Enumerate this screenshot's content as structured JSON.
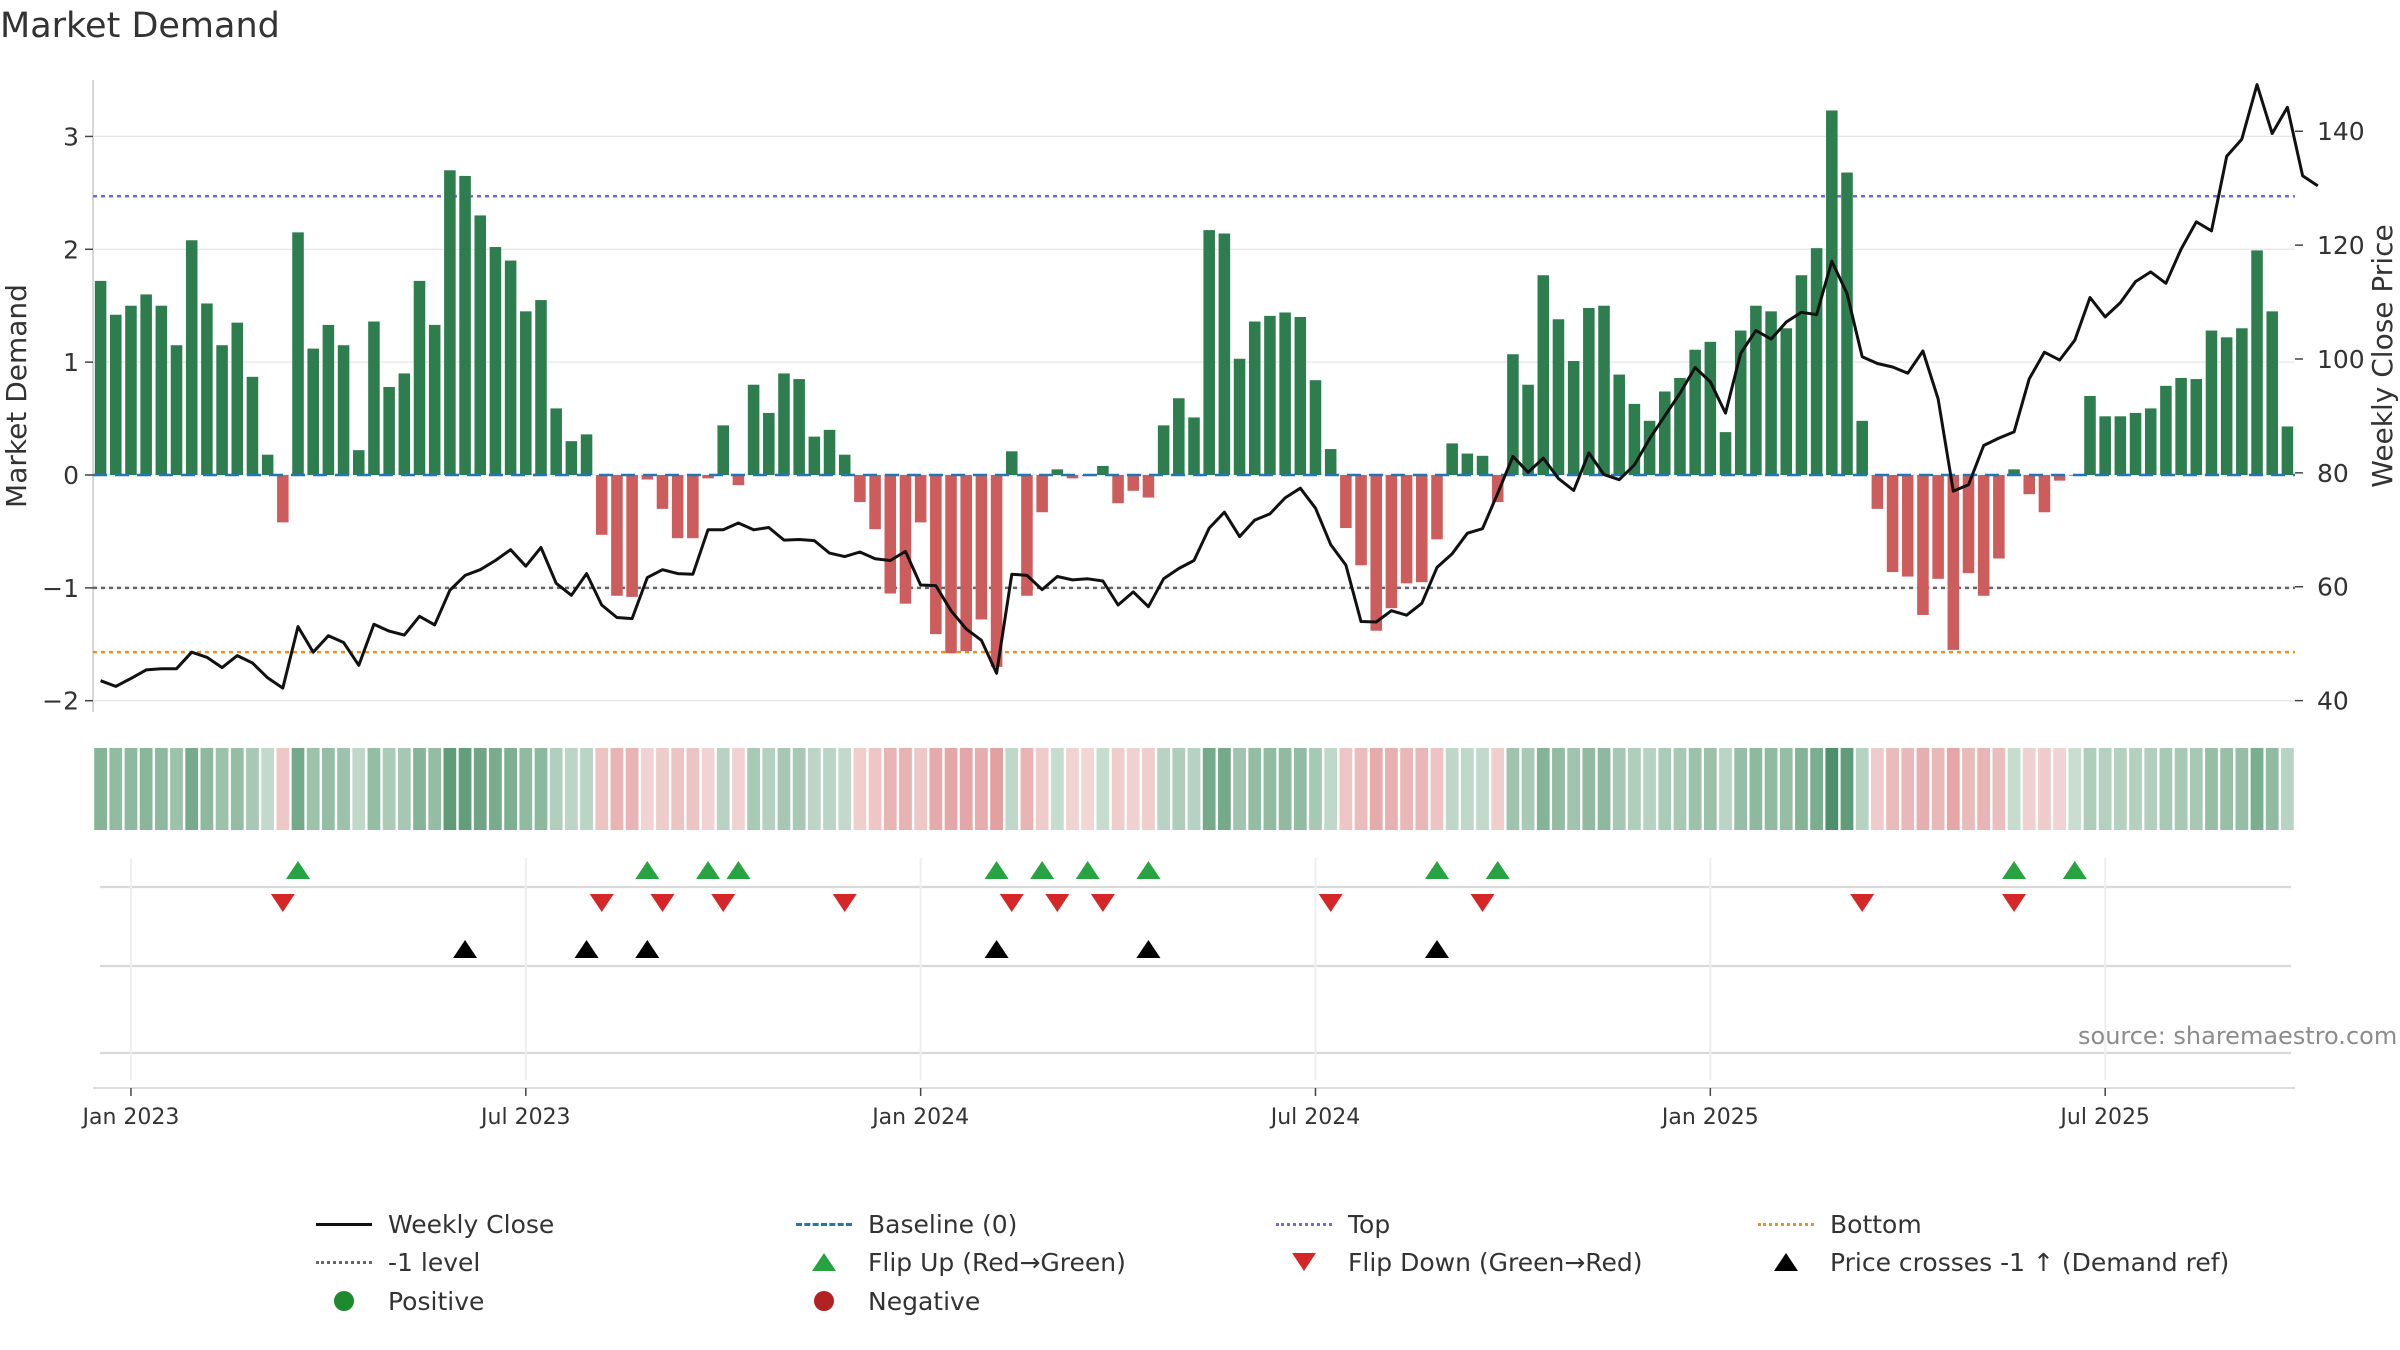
{
  "title": "Market Demand",
  "source_text": "source: sharemaestro.com",
  "colors": {
    "positive": "#2e7d4f",
    "negative": "#cd5c5c",
    "close": "#111111",
    "baseline": "#1f77b4",
    "top": "#6c6cd4",
    "bottom": "#d99a1c",
    "minus1": "#666666",
    "flip_up": "#27a342",
    "flip_down": "#d62728",
    "cross": "#000000",
    "positive_dot": "#1e8a2e",
    "negative_dot": "#b22222",
    "grid": "#e6e6e6",
    "source": "#8c8c8c"
  },
  "chart_data": {
    "type": "bar",
    "title": "Market Demand",
    "ylabel": "Market Demand",
    "y2label": "Weekly Close Price",
    "ylim": [
      -2.1,
      3.5
    ],
    "y2lim": [
      38,
      149
    ],
    "yticks": [
      {
        "v": 3,
        "label": "3"
      },
      {
        "v": 2,
        "label": "2"
      },
      {
        "v": 1,
        "label": "1"
      },
      {
        "v": 0,
        "label": "0"
      },
      {
        "v": -1,
        "label": "−1"
      },
      {
        "v": -2,
        "label": "−2"
      }
    ],
    "y2ticks": [
      {
        "v": 140,
        "label": "140"
      },
      {
        "v": 120,
        "label": "120"
      },
      {
        "v": 100,
        "label": "100"
      },
      {
        "v": 80,
        "label": "80"
      },
      {
        "v": 60,
        "label": "60"
      },
      {
        "v": 40,
        "label": "40"
      }
    ],
    "xticks": [
      {
        "i": 2,
        "label": "Jan 2023"
      },
      {
        "i": 28,
        "label": "Jul 2023"
      },
      {
        "i": 54,
        "label": "Jan 2024"
      },
      {
        "i": 80,
        "label": "Jul 2024"
      },
      {
        "i": 106,
        "label": "Jan 2025"
      },
      {
        "i": 132,
        "label": "Jul 2025"
      }
    ],
    "levels": {
      "baseline": 0,
      "top": 2.47,
      "minus1": -1,
      "bottom": -1.57
    },
    "demand": [
      1.72,
      1.42,
      1.5,
      1.6,
      1.5,
      1.15,
      2.08,
      1.52,
      1.15,
      1.35,
      0.87,
      0.18,
      -0.42,
      2.15,
      1.12,
      1.33,
      1.15,
      0.22,
      1.36,
      0.78,
      0.9,
      1.72,
      1.33,
      2.7,
      2.65,
      2.3,
      2.02,
      1.9,
      1.45,
      1.55,
      0.59,
      0.3,
      0.36,
      -0.53,
      -1.07,
      -1.08,
      -0.04,
      -0.3,
      -0.56,
      -0.56,
      -0.03,
      0.44,
      -0.09,
      0.8,
      0.55,
      0.9,
      0.85,
      0.34,
      0.4,
      0.18,
      -0.24,
      -0.48,
      -1.05,
      -1.14,
      -0.42,
      -1.41,
      -1.58,
      -1.56,
      -1.28,
      -1.7,
      0.21,
      -1.07,
      -0.33,
      0.05,
      -0.03,
      -0.01,
      0.08,
      -0.25,
      -0.14,
      -0.2,
      0.44,
      0.68,
      0.51,
      2.17,
      2.14,
      1.03,
      1.36,
      1.41,
      1.44,
      1.4,
      0.84,
      0.23,
      -0.47,
      -0.8,
      -1.38,
      -1.18,
      -0.96,
      -0.95,
      -0.57,
      0.28,
      0.19,
      0.17,
      -0.24,
      1.07,
      0.8,
      1.77,
      1.38,
      1.01,
      1.48,
      1.5,
      0.89,
      0.63,
      0.48,
      0.74,
      0.86,
      1.11,
      1.18,
      0.38,
      1.28,
      1.5,
      1.45,
      1.3,
      1.77,
      2.01,
      3.23,
      2.68,
      0.48,
      -0.3,
      -0.86,
      -0.9,
      -1.24,
      -0.92,
      -1.55,
      -0.87,
      -1.07,
      -0.74,
      0.05,
      -0.17,
      -0.33,
      -0.05,
      0,
      0.7,
      0.52,
      0.52,
      0.55,
      0.59,
      0.79,
      0.86,
      0.85,
      1.28,
      1.22,
      1.3,
      1.99,
      1.45,
      0.43
    ],
    "close": [
      43.5,
      42.5,
      43.9,
      45.4,
      45.6,
      45.6,
      48.5,
      47.6,
      45.8,
      47.9,
      46.6,
      44.0,
      42.2,
      53.0,
      48.5,
      51.4,
      50.2,
      46.2,
      53.4,
      52.2,
      51.5,
      54.8,
      53.3,
      59.4,
      62.0,
      63.0,
      64.6,
      66.5,
      63.6,
      66.9,
      60.6,
      58.5,
      62.3,
      56.8,
      54.6,
      54.4,
      61.6,
      63.0,
      62.3,
      62.2,
      70.0,
      70.0,
      71.2,
      70.0,
      70.4,
      68.2,
      68.3,
      68.1,
      65.9,
      65.3,
      66.1,
      64.9,
      64.6,
      66.2,
      60.3,
      60.2,
      55.8,
      52.6,
      50.6,
      44.8,
      62.2,
      62.0,
      59.5,
      61.8,
      61.2,
      61.4,
      61.0,
      56.8,
      59.1,
      56.5,
      61.4,
      63.2,
      64.6,
      70.3,
      73.1,
      68.8,
      71.7,
      72.8,
      75.6,
      77.3,
      73.8,
      67.4,
      63.8,
      53.9,
      53.8,
      55.8,
      55.0,
      57.1,
      63.4,
      65.8,
      69.4,
      70.2,
      76.4,
      82.9,
      80.1,
      82.6,
      79.0,
      76.9,
      83.5,
      79.7,
      78.8,
      81.4,
      86.0,
      90.0,
      94.0,
      98.5,
      96.0,
      90.5,
      101.0,
      105.0,
      103.5,
      106.5,
      108.2,
      107.8,
      117.2,
      111.5,
      100.4,
      99.2,
      98.6,
      97.5,
      101.4,
      93.0,
      76.8,
      77.9,
      84.8,
      86.1,
      87.2,
      96.5,
      101.2,
      99.8,
      103.3,
      110.8,
      107.4,
      109.9,
      113.6,
      115.3,
      113.3,
      119.3,
      124.1,
      122.5,
      135.6,
      138.6,
      148.2,
      139.6,
      144.2,
      132.2,
      130.4
    ],
    "flip_up": [
      13,
      36,
      40,
      42,
      59,
      62,
      65,
      69,
      88,
      92,
      126,
      130
    ],
    "flip_down": [
      12,
      33,
      37,
      41,
      49,
      60,
      63,
      66,
      81,
      91,
      116,
      126
    ],
    "price_cross": [
      24,
      32,
      36,
      59,
      69,
      88
    ],
    "legend": [
      {
        "key": "close",
        "kind": "line-solid",
        "label": "Weekly Close"
      },
      {
        "key": "baseline",
        "kind": "line-dash",
        "label": "Baseline (0)"
      },
      {
        "key": "top",
        "kind": "line-dot",
        "label": "Top"
      },
      {
        "key": "bottom",
        "kind": "line-dot",
        "label": "Bottom"
      },
      {
        "key": "minus1",
        "kind": "line-dot",
        "label": "-1 level"
      },
      {
        "key": "flip_up",
        "kind": "tri-up",
        "label": "Flip Up (Red→Green)"
      },
      {
        "key": "flip_down",
        "kind": "tri-down",
        "label": "Flip Down (Green→Red)"
      },
      {
        "key": "cross",
        "kind": "tri-up",
        "label": "Price crosses -1 ↑ (Demand ref)"
      },
      {
        "key": "positive_dot",
        "kind": "dot",
        "label": "Positive"
      },
      {
        "key": "negative_dot",
        "kind": "dot",
        "label": "Negative"
      }
    ]
  }
}
